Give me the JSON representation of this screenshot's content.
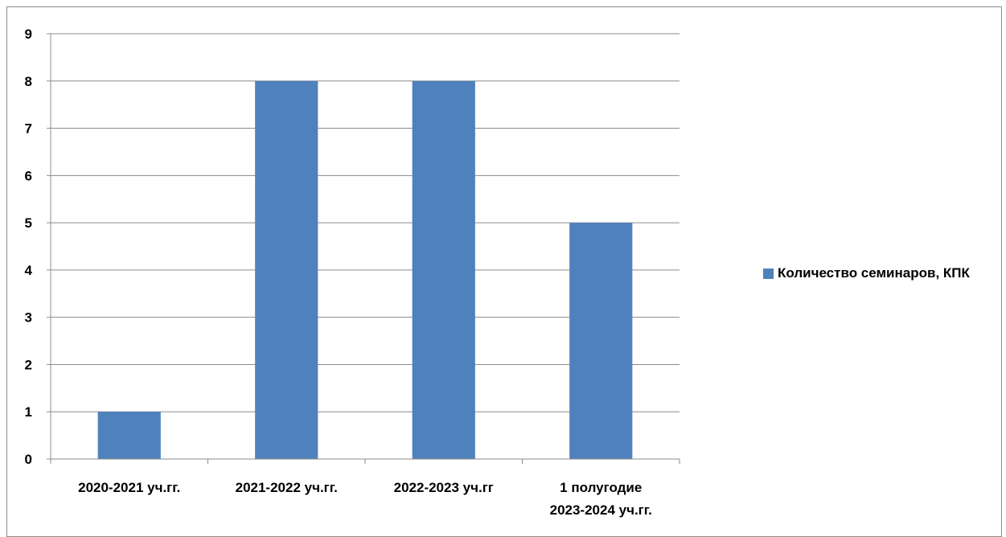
{
  "chart_data": {
    "type": "bar",
    "title": "",
    "xlabel": "",
    "ylabel": "",
    "categories": [
      [
        "2020-2021 уч.гг."
      ],
      [
        "2021-2022 уч.гг."
      ],
      [
        "2022-2023 уч.гг"
      ],
      [
        "1 полугодие",
        "2023-2024 уч.гг."
      ]
    ],
    "series": [
      {
        "name": "Количество семинаров, КПК",
        "values": [
          1,
          8,
          8,
          5
        ],
        "color": "#4F81BD"
      }
    ],
    "ylim": [
      0,
      9
    ],
    "yticks": [
      0,
      1,
      2,
      3,
      4,
      5,
      6,
      7,
      8,
      9
    ],
    "grid": true,
    "legend": "right"
  }
}
